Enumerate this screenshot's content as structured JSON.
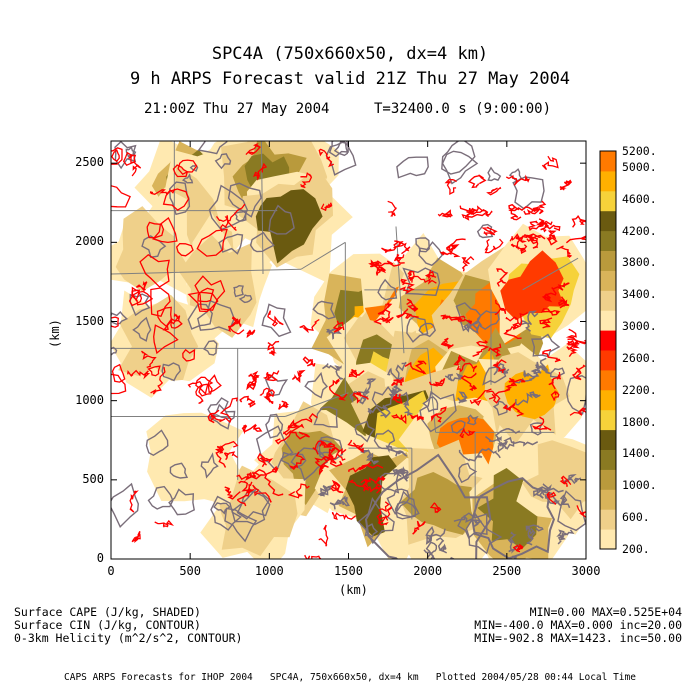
{
  "title_line1": "SPC4A (750x660x50, dx=4 km)",
  "title_line2": "9 h ARPS Forecast valid 21Z Thu 27 May 2004",
  "subtitle_time": "21:00Z Thu 27 May 2004",
  "subtitle_t": "T=32400.0 s (9:00:00)",
  "axis": {
    "x_label": "(km)",
    "y_label": "(km)",
    "x_ticks": [
      "0",
      "500",
      "1000",
      "1500",
      "2000",
      "2500",
      "3000"
    ],
    "y_ticks": [
      "0",
      "500",
      "1000",
      "1500",
      "2000",
      "2500"
    ],
    "x_range": [
      0,
      3000
    ],
    "y_range": [
      0,
      2640
    ]
  },
  "colorbar": {
    "labels": [
      "200.",
      "600.",
      "1000.",
      "1400.",
      "1800.",
      "2200.",
      "2600.",
      "3000.",
      "3400.",
      "3800.",
      "4200.",
      "4600.",
      "5000.",
      "5200."
    ],
    "colors": [
      "#ffe9b0",
      "#efd08a",
      "#d9b45a",
      "#b99a3c",
      "#8a7a22",
      "#6a5a10",
      "#f6d23a",
      "#ffb000",
      "#ff7a00",
      "#ff3a00",
      "#ff0000",
      "#ffe9b0",
      "#efd08a",
      "#d9b45a",
      "#b99a3c",
      "#8a7a22",
      "#6a5a10",
      "#f6d23a",
      "#ffb000",
      "#ff7a00"
    ]
  },
  "legend": {
    "line1": "Surface CAPE (J/kg, SHADED)",
    "line2": "Surface CIN (J/kg, CONTOUR)",
    "line3": "0-3km Helicity (m^2/s^2, CONTOUR)",
    "stats1": "MIN=0.00 MAX=0.525E+04",
    "stats2": "MIN=-400.0 MAX=0.000 inc=20.00",
    "stats3": "MIN=-902.8 MAX=1423. inc=50.00"
  },
  "footer": "CAPS ARPS Forecasts for IHOP 2004   SPC4A, 750x660x50, dx=4 km   Plotted 2004/05/28 00:44 Local Time",
  "colors": {
    "cin_contour": "#7a6e7a",
    "helicity_contour": "#ff0000",
    "state_border": "#808080"
  }
}
